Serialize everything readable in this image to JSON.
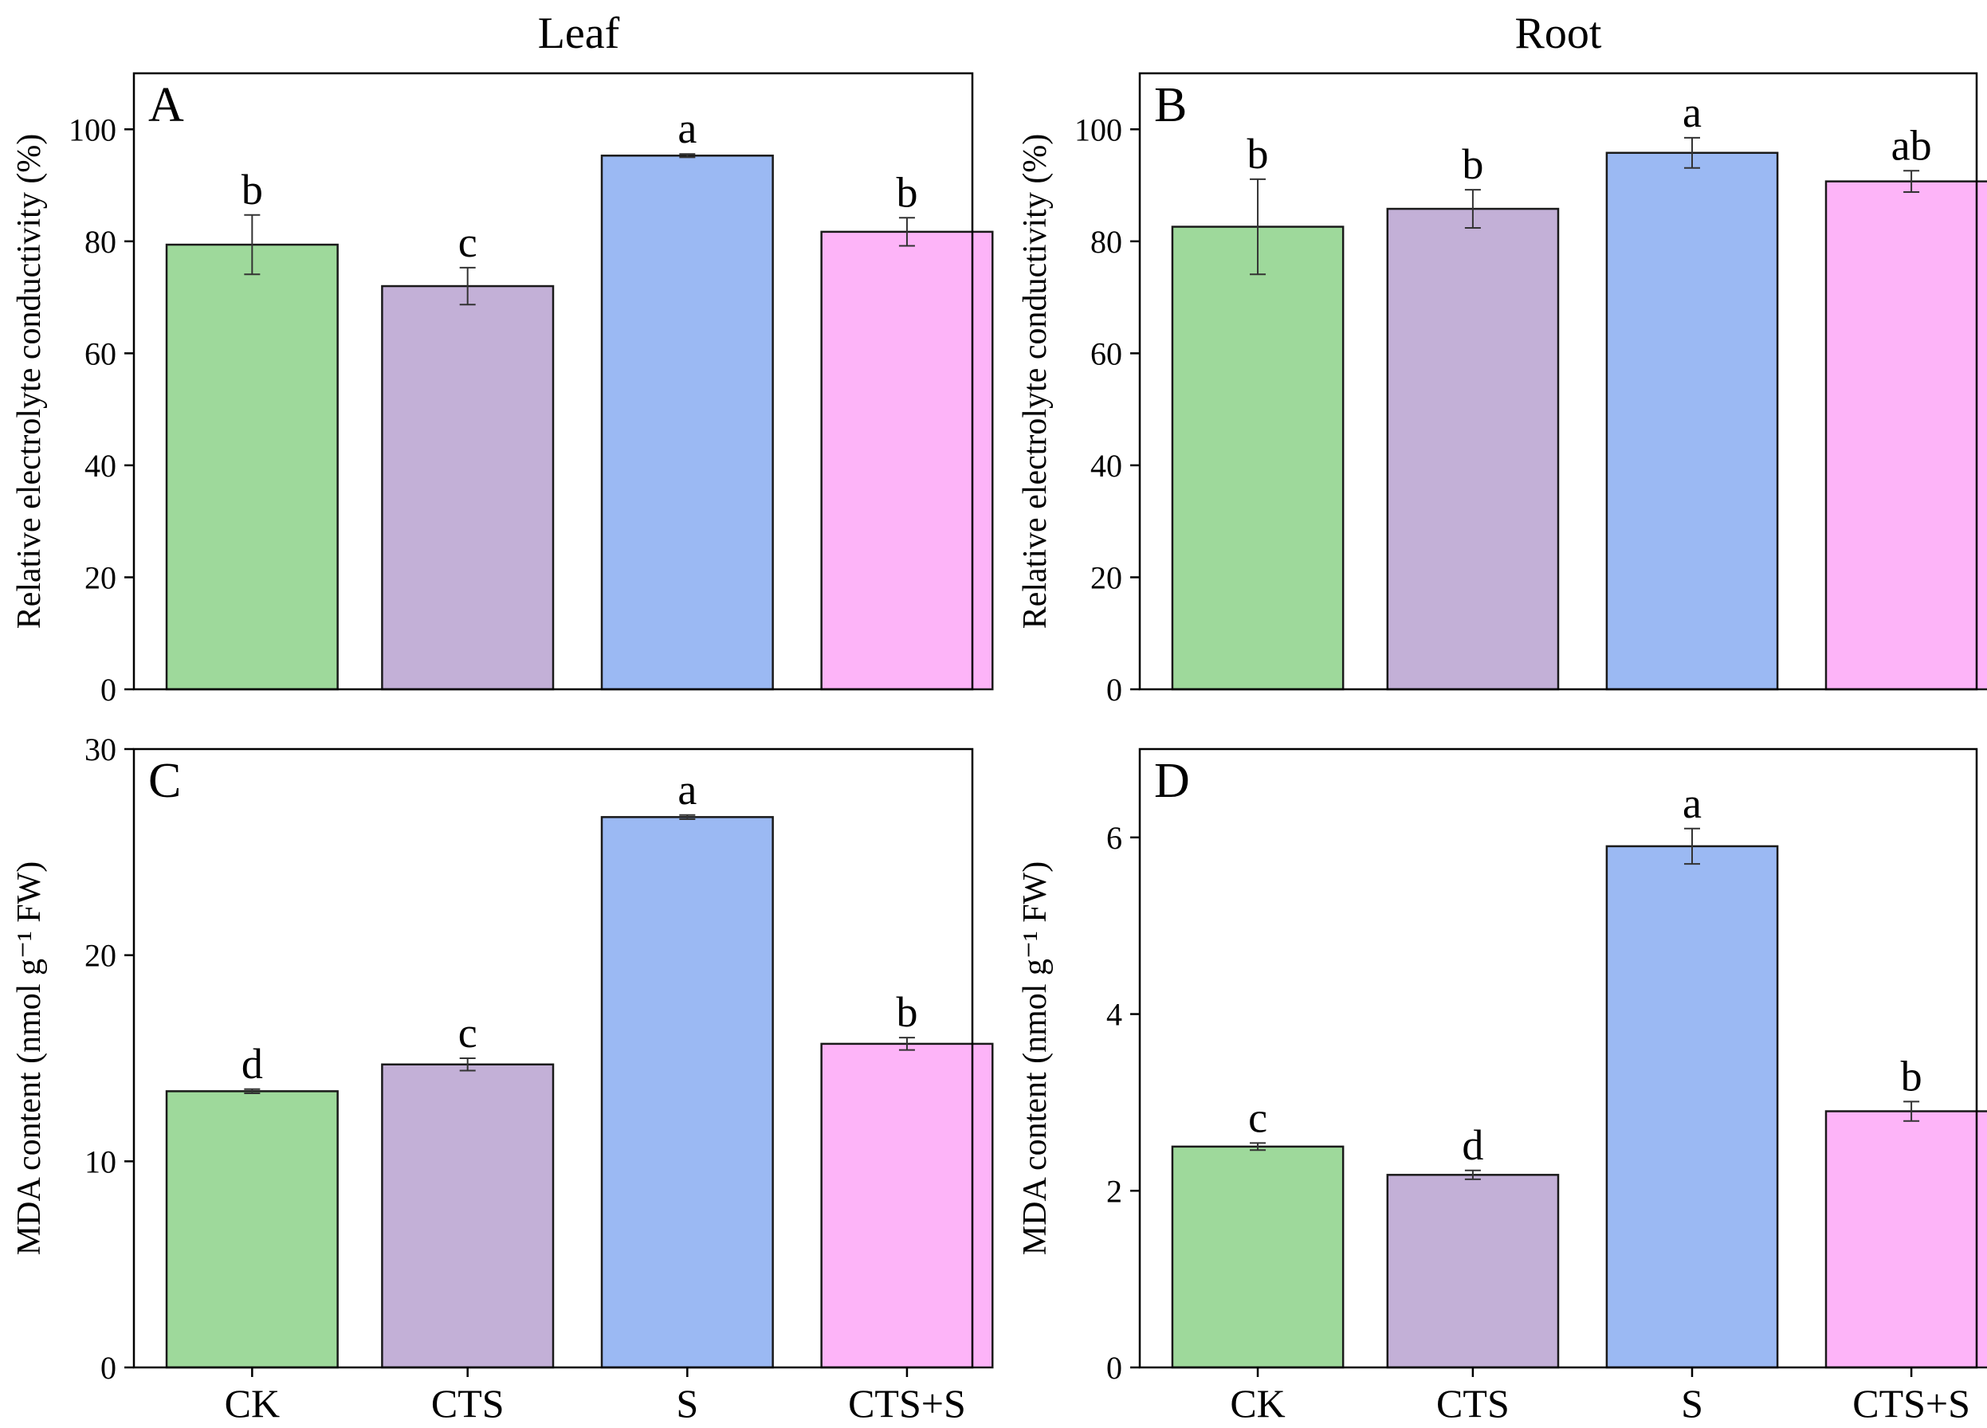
{
  "column_titles": {
    "leaf": "Leaf",
    "root": "Root"
  },
  "colors": {
    "CK": "#9ed99b",
    "CTS": "#c3b0d7",
    "S": "#9bb9f3",
    "CTS+S": "#fdb4f8"
  },
  "chart_data": [
    {
      "type": "bar",
      "panel": "A",
      "column": "Leaf",
      "categories": [
        "CK",
        "CTS",
        "S",
        "CTS+S"
      ],
      "values": [
        79.4,
        72.0,
        95.3,
        81.7
      ],
      "errors": [
        5.3,
        3.3,
        0.3,
        2.5
      ],
      "significance": [
        "b",
        "c",
        "a",
        "b"
      ],
      "ylabel": "Relative electrolyte conductivity (%)",
      "ylim": [
        0,
        110
      ],
      "yticks": [
        0,
        20,
        40,
        60,
        80,
        100
      ],
      "show_xticklabels": false
    },
    {
      "type": "bar",
      "panel": "B",
      "column": "Root",
      "categories": [
        "CK",
        "CTS",
        "S",
        "CTS+S"
      ],
      "values": [
        82.6,
        85.8,
        95.8,
        90.7
      ],
      "errors": [
        8.5,
        3.4,
        2.7,
        1.9
      ],
      "significance": [
        "b",
        "b",
        "a",
        "ab"
      ],
      "ylabel": "Relative electrolyte conductivity (%)",
      "ylim": [
        0,
        110
      ],
      "yticks": [
        0,
        20,
        40,
        60,
        80,
        100
      ],
      "show_xticklabels": false
    },
    {
      "type": "bar",
      "panel": "C",
      "column": "Leaf",
      "categories": [
        "CK",
        "CTS",
        "S",
        "CTS+S"
      ],
      "values": [
        13.4,
        14.7,
        26.7,
        15.7
      ],
      "errors": [
        0.1,
        0.3,
        0.1,
        0.3
      ],
      "significance": [
        "d",
        "c",
        "a",
        "b"
      ],
      "ylabel": "MDA content (nmol g⁻¹ FW)",
      "ylim": [
        0,
        30
      ],
      "yticks": [
        0,
        10,
        20,
        30
      ],
      "show_xticklabels": true
    },
    {
      "type": "bar",
      "panel": "D",
      "column": "Root",
      "categories": [
        "CK",
        "CTS",
        "S",
        "CTS+S"
      ],
      "values": [
        2.5,
        2.18,
        5.9,
        2.9
      ],
      "errors": [
        0.04,
        0.05,
        0.2,
        0.11
      ],
      "significance": [
        "c",
        "d",
        "a",
        "b"
      ],
      "ylabel": "MDA content (nmol g⁻¹ FW)",
      "ylim": [
        0,
        7
      ],
      "yticks": [
        0,
        2,
        4,
        6
      ],
      "show_xticklabels": true
    }
  ]
}
